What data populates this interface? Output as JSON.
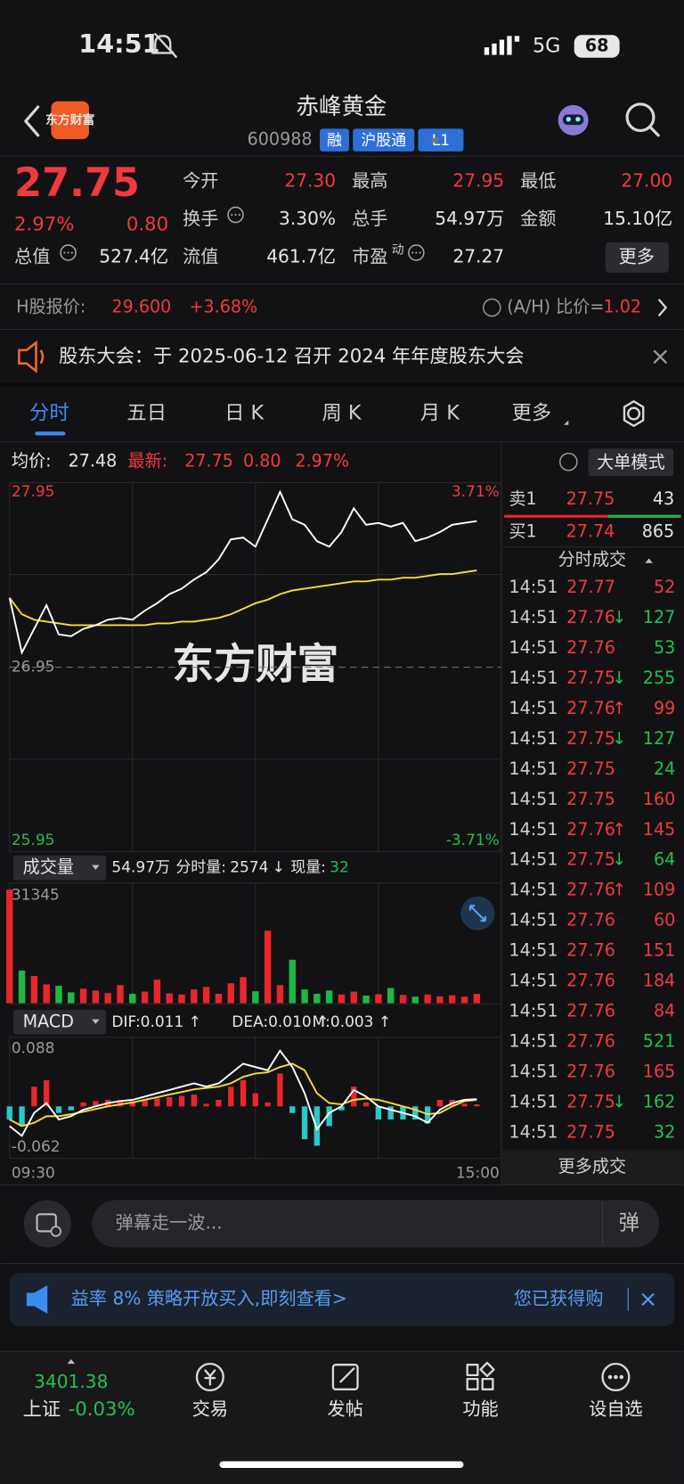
{
  "status_bar": {
    "time": "14:51",
    "network": "5G",
    "battery": "68"
  },
  "header": {
    "logo": "东方财富",
    "title": "赤峰黄金",
    "code": "600988",
    "tags": [
      "融",
      "沪股通",
      "L1"
    ]
  },
  "quote": {
    "price": "27.75",
    "change_pct": "2.97%",
    "change": "0.80",
    "open": {
      "label": "今开",
      "value": "27.30"
    },
    "high": {
      "label": "最高",
      "value": "27.95"
    },
    "low": {
      "label": "最低",
      "value": "27.00"
    },
    "turnover": {
      "label": "换手",
      "value": "3.30%"
    },
    "volume": {
      "label": "总手",
      "value": "54.97万"
    },
    "amount": {
      "label": "金额",
      "value": "15.10亿"
    },
    "market_cap": {
      "label": "总值",
      "value": "527.4亿"
    },
    "float_cap": {
      "label": "流值",
      "value": "461.7亿"
    },
    "pe": {
      "label": "市盈",
      "sup": "动",
      "value": "27.27"
    },
    "more": "更多"
  },
  "h_share": {
    "label": "H股报价:",
    "price": "29.600",
    "change_pct": "+3.68%",
    "ah_label": "(A/H) 比价=",
    "ah_value": "1.02"
  },
  "notice": {
    "text": "股东大会：于 2025-06-12 召开 2024 年年度股东大会"
  },
  "tabs": [
    "分时",
    "五日",
    "日 K",
    "周 K",
    "月 K",
    "更多"
  ],
  "chart_info": {
    "avg_label": "均价:",
    "avg": "27.48",
    "latest_label": "最新:",
    "latest": "27.75",
    "change": "0.80",
    "change_pct": "2.97%",
    "mode": "大单模式"
  },
  "price_chart": {
    "type": "line",
    "watermark": "东方财富",
    "xlim": [
      0,
      240
    ],
    "x": [
      0,
      6,
      12,
      18,
      24,
      30,
      36,
      42,
      48,
      54,
      60,
      66,
      72,
      78,
      84,
      90,
      96,
      102,
      108,
      114,
      120,
      126,
      132,
      138,
      144,
      150,
      156,
      162,
      168,
      174,
      180,
      186,
      192,
      198,
      204,
      210,
      216,
      222,
      228
    ],
    "ylim": [
      25.95,
      27.95
    ],
    "yticks": [
      25.95,
      26.95,
      27.95
    ],
    "ytick_colors": [
      "#22c04e",
      "#9a9a9a",
      "#f03a3f"
    ],
    "y2lim": [
      -3.71,
      3.71
    ],
    "y2ticks": [
      {
        "value": -3.71,
        "label": "-3.71%"
      },
      {
        "value": 3.71,
        "label": "3.71%"
      }
    ],
    "y2tick_colors": [
      "#22c04e",
      "#f03a3f"
    ],
    "x_labels": [
      "09:30",
      "15:00"
    ],
    "series": [
      {
        "color": "#ffffff",
        "values": [
          27.33,
          27.03,
          27.16,
          27.29,
          27.13,
          27.12,
          27.16,
          27.18,
          27.21,
          27.22,
          27.21,
          27.26,
          27.3,
          27.35,
          27.38,
          27.43,
          27.47,
          27.54,
          27.65,
          27.66,
          27.61,
          27.76,
          27.91,
          27.76,
          27.73,
          27.64,
          27.61,
          27.69,
          27.82,
          27.73,
          27.74,
          27.72,
          27.74,
          27.64,
          27.66,
          27.69,
          27.73,
          27.74,
          27.75
        ]
      },
      {
        "color": "#f5dc3c",
        "values": [
          27.33,
          27.24,
          27.21,
          27.2,
          27.19,
          27.18,
          27.18,
          27.18,
          27.18,
          27.18,
          27.18,
          27.18,
          27.19,
          27.19,
          27.2,
          27.2,
          27.21,
          27.22,
          27.24,
          27.27,
          27.3,
          27.32,
          27.35,
          27.37,
          27.38,
          27.39,
          27.4,
          27.41,
          27.42,
          27.42,
          27.43,
          27.43,
          27.44,
          27.44,
          27.45,
          27.46,
          27.46,
          27.47,
          27.48
        ]
      }
    ]
  },
  "volume_chart": {
    "type": "bar",
    "label": "成交量",
    "total": "54.97万",
    "segment_label": "分时量:",
    "segment": "2574",
    "arrow": "↓",
    "current_label": "现量:",
    "current": "32",
    "ylim": [
      0,
      31345
    ],
    "yticks": [
      31345
    ],
    "up_color": "#e8262c",
    "down_color": "#1fb845",
    "values": [
      31345,
      9000,
      7500,
      5200,
      4800,
      3000,
      4000,
      3500,
      2800,
      5000,
      2600,
      3200,
      6500,
      2700,
      2400,
      3800,
      4500,
      2600,
      5500,
      7200,
      3300,
      20000,
      5000,
      12000,
      3800,
      2600,
      3500,
      2400,
      3200,
      2100,
      2500,
      4200,
      2300,
      1800,
      2400,
      1900,
      2200,
      1800,
      2574
    ]
  },
  "macd_chart": {
    "type": "macd",
    "label": "MACD",
    "dif": "DIF:0.011 ↑",
    "dea": "DEA:0.010 ↑",
    "m": "M:0.003 ↑",
    "ylim": [
      -0.062,
      0.088
    ],
    "yticks": [
      -0.062,
      0.088
    ],
    "dif_color": "#ffffff",
    "dea_color": "#f5dc3c",
    "up_color": "#e8262c",
    "down_color": "#2cc7c7",
    "dif_values": [
      -0.03,
      -0.045,
      -0.01,
      0.005,
      -0.02,
      -0.015,
      -0.005,
      0.0,
      0.005,
      0.008,
      0.01,
      0.015,
      0.02,
      0.025,
      0.03,
      0.035,
      0.03,
      0.035,
      0.05,
      0.065,
      0.06,
      0.055,
      0.085,
      0.06,
      0.02,
      -0.035,
      -0.01,
      0.0,
      0.025,
      0.015,
      0.0,
      -0.005,
      -0.01,
      -0.015,
      -0.025,
      -0.005,
      0.005,
      0.01,
      0.011
    ],
    "dea_values": [
      -0.02,
      -0.03,
      -0.025,
      -0.015,
      -0.015,
      -0.012,
      -0.008,
      -0.004,
      0.0,
      0.003,
      0.006,
      0.01,
      0.014,
      0.018,
      0.022,
      0.026,
      0.028,
      0.03,
      0.035,
      0.045,
      0.05,
      0.052,
      0.06,
      0.065,
      0.055,
      0.02,
      0.005,
      0.003,
      0.01,
      0.012,
      0.01,
      0.005,
      0.0,
      -0.005,
      -0.012,
      -0.01,
      0.0,
      0.008,
      0.01
    ],
    "macd_values": [
      -0.02,
      -0.03,
      0.03,
      0.04,
      -0.01,
      -0.006,
      0.006,
      0.008,
      0.01,
      0.01,
      0.008,
      0.01,
      0.012,
      0.014,
      0.016,
      0.018,
      0.004,
      0.01,
      0.03,
      0.04,
      0.02,
      0.006,
      0.05,
      -0.01,
      -0.05,
      -0.06,
      -0.03,
      -0.006,
      0.03,
      0.006,
      -0.02,
      -0.02,
      -0.02,
      -0.02,
      -0.026,
      0.01,
      0.01,
      0.004,
      0.003
    ]
  },
  "order_book": {
    "sell": {
      "label": "卖1",
      "price": "27.75",
      "volume": "43"
    },
    "buy": {
      "label": "买1",
      "price": "27.74",
      "volume": "865"
    }
  },
  "trades": {
    "title": "分时成交",
    "more": "更多成交",
    "rows": [
      {
        "time": "14:51",
        "price": "27.77",
        "volume": "52",
        "color": "#f03a3f"
      },
      {
        "time": "14:51",
        "price": "27.76",
        "arrow": "↓",
        "volume": "127",
        "color": "#22c04e"
      },
      {
        "time": "14:51",
        "price": "27.76",
        "volume": "53",
        "color": "#22c04e"
      },
      {
        "time": "14:51",
        "price": "27.75",
        "arrow": "↓",
        "volume": "255",
        "color": "#22c04e"
      },
      {
        "time": "14:51",
        "price": "27.76",
        "arrow": "↑",
        "volume": "99",
        "color": "#f03a3f"
      },
      {
        "time": "14:51",
        "price": "27.75",
        "arrow": "↓",
        "volume": "127",
        "color": "#22c04e"
      },
      {
        "time": "14:51",
        "price": "27.75",
        "volume": "24",
        "color": "#22c04e"
      },
      {
        "time": "14:51",
        "price": "27.75",
        "volume": "160",
        "color": "#f03a3f"
      },
      {
        "time": "14:51",
        "price": "27.76",
        "arrow": "↑",
        "volume": "145",
        "color": "#f03a3f"
      },
      {
        "time": "14:51",
        "price": "27.75",
        "arrow": "↓",
        "volume": "64",
        "color": "#22c04e"
      },
      {
        "time": "14:51",
        "price": "27.76",
        "arrow": "↑",
        "volume": "109",
        "color": "#f03a3f"
      },
      {
        "time": "14:51",
        "price": "27.76",
        "volume": "60",
        "color": "#f03a3f"
      },
      {
        "time": "14:51",
        "price": "27.76",
        "volume": "151",
        "color": "#f03a3f"
      },
      {
        "time": "14:51",
        "price": "27.76",
        "volume": "184",
        "color": "#f03a3f"
      },
      {
        "time": "14:51",
        "price": "27.76",
        "volume": "84",
        "color": "#f03a3f"
      },
      {
        "time": "14:51",
        "price": "27.76",
        "volume": "521",
        "color": "#22c04e"
      },
      {
        "time": "14:51",
        "price": "27.76",
        "volume": "165",
        "color": "#f03a3f"
      },
      {
        "time": "14:51",
        "price": "27.75",
        "arrow": "↓",
        "volume": "162",
        "color": "#22c04e"
      },
      {
        "time": "14:51",
        "price": "27.75",
        "volume": "32",
        "color": "#22c04e"
      }
    ]
  },
  "danmu": {
    "placeholder": "弹幕走一波...",
    "button": "弹"
  },
  "banner": {
    "text": "益率 8% 策略开放买入,即刻查看>",
    "reward": "您已获得购"
  },
  "bottom_nav": {
    "index_value": "3401.38",
    "index_name": "上证",
    "index_change": "-0.03%",
    "items": [
      "交易",
      "发帖",
      "功能",
      "设自选"
    ]
  }
}
